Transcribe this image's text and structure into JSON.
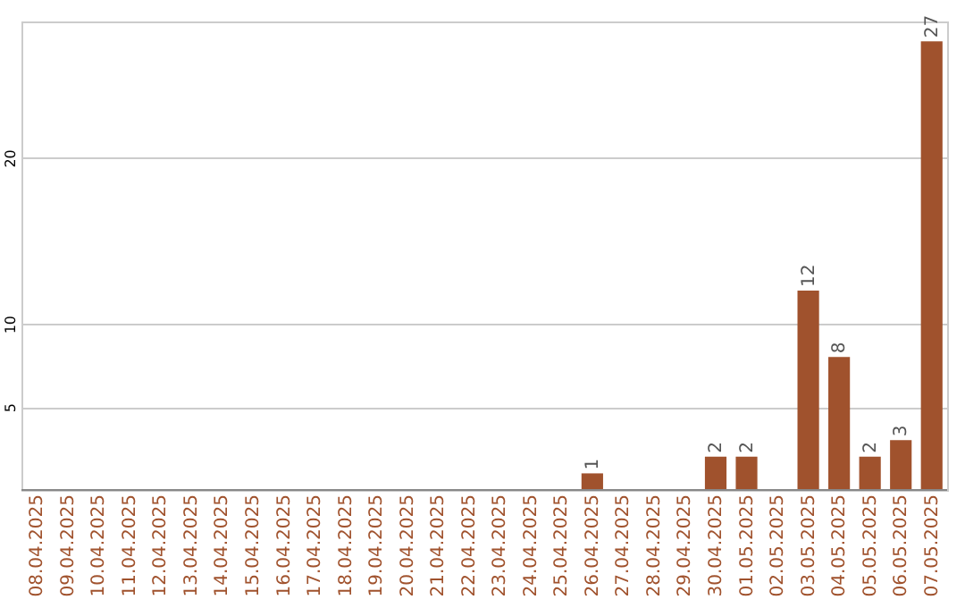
{
  "chart_data": {
    "type": "bar",
    "categories": [
      "08.04.2025",
      "09.04.2025",
      "10.04.2025",
      "11.04.2025",
      "12.04.2025",
      "13.04.2025",
      "14.04.2025",
      "15.04.2025",
      "16.04.2025",
      "17.04.2025",
      "18.04.2025",
      "19.04.2025",
      "20.04.2025",
      "21.04.2025",
      "22.04.2025",
      "23.04.2025",
      "24.04.2025",
      "25.04.2025",
      "26.04.2025",
      "27.04.2025",
      "28.04.2025",
      "29.04.2025",
      "30.04.2025",
      "01.05.2025",
      "02.05.2025",
      "03.05.2025",
      "04.05.2025",
      "05.05.2025",
      "06.05.2025",
      "07.05.2025"
    ],
    "values": [
      0,
      0,
      0,
      0,
      0,
      0,
      0,
      0,
      0,
      0,
      0,
      0,
      0,
      0,
      0,
      0,
      0,
      0,
      1,
      0,
      0,
      0,
      2,
      2,
      0,
      12,
      8,
      2,
      3,
      27
    ],
    "value_labels": [
      null,
      null,
      null,
      null,
      null,
      null,
      null,
      null,
      null,
      null,
      null,
      null,
      null,
      null,
      null,
      null,
      null,
      null,
      "1",
      null,
      null,
      null,
      "2",
      "2",
      null,
      "12",
      "8",
      "2",
      "3",
      "27"
    ],
    "color": "#a0522d",
    "ylim": [
      0,
      28.2
    ],
    "yticks": [
      5,
      10,
      20
    ],
    "grid": "y"
  }
}
